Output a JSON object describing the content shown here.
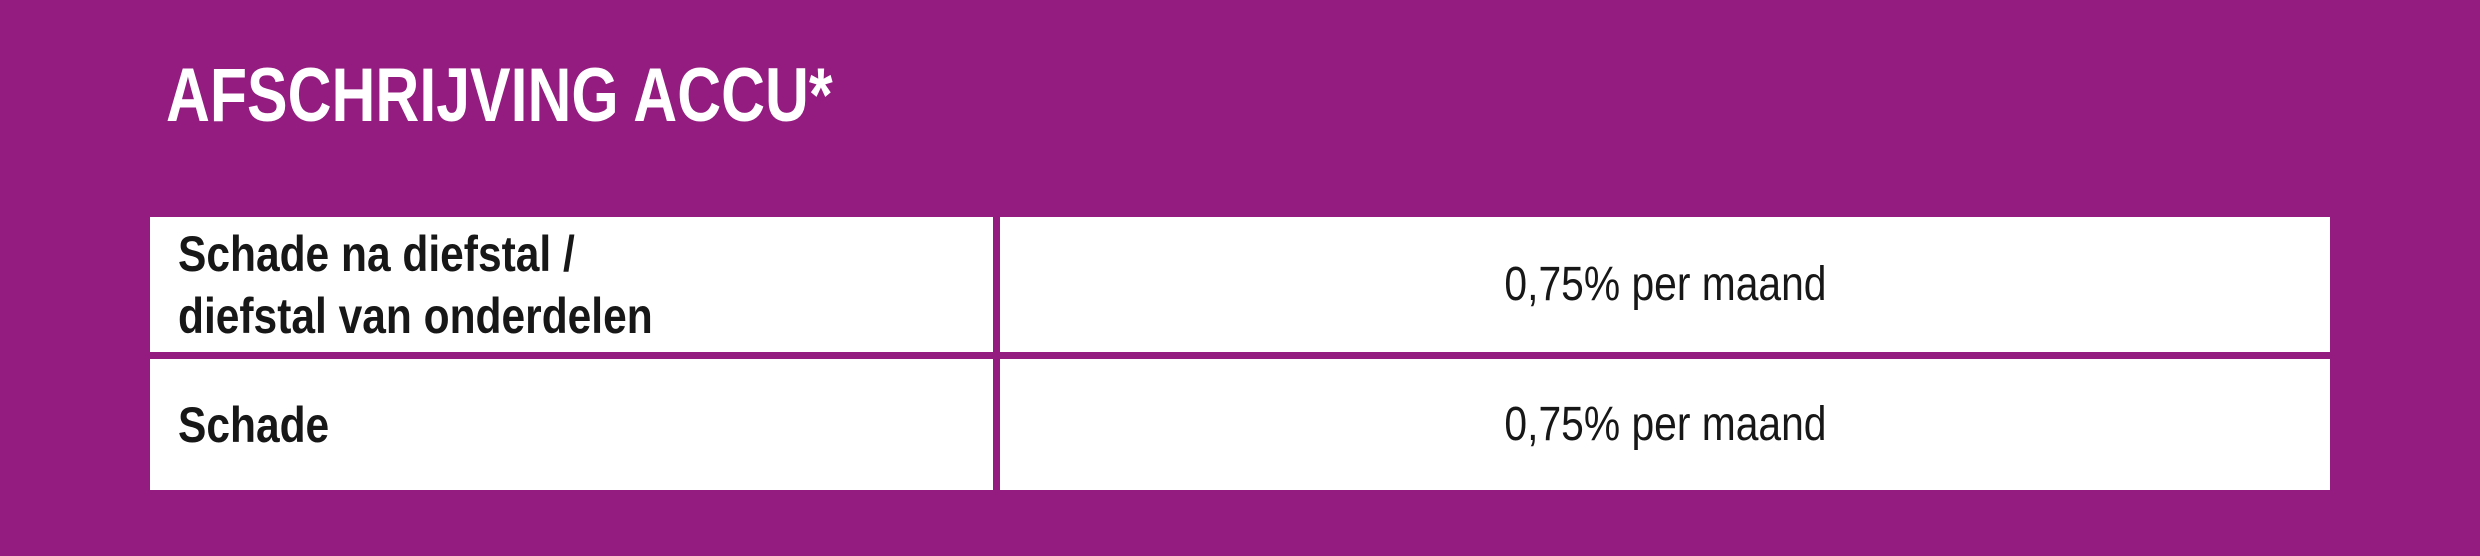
{
  "colors": {
    "background": "#941C81",
    "cell_background": "#FFFFFF",
    "title_text": "#FFFFFF",
    "cell_text": "#171717"
  },
  "title": "AFSCHRIJVING ACCU*",
  "table": {
    "rows": [
      {
        "label_lines": [
          "Schade na diefstal /",
          "diefstal van onderdelen"
        ],
        "value": "0,75% per maand"
      },
      {
        "label_lines": [
          "Schade"
        ],
        "value": "0,75% per maand"
      }
    ]
  }
}
